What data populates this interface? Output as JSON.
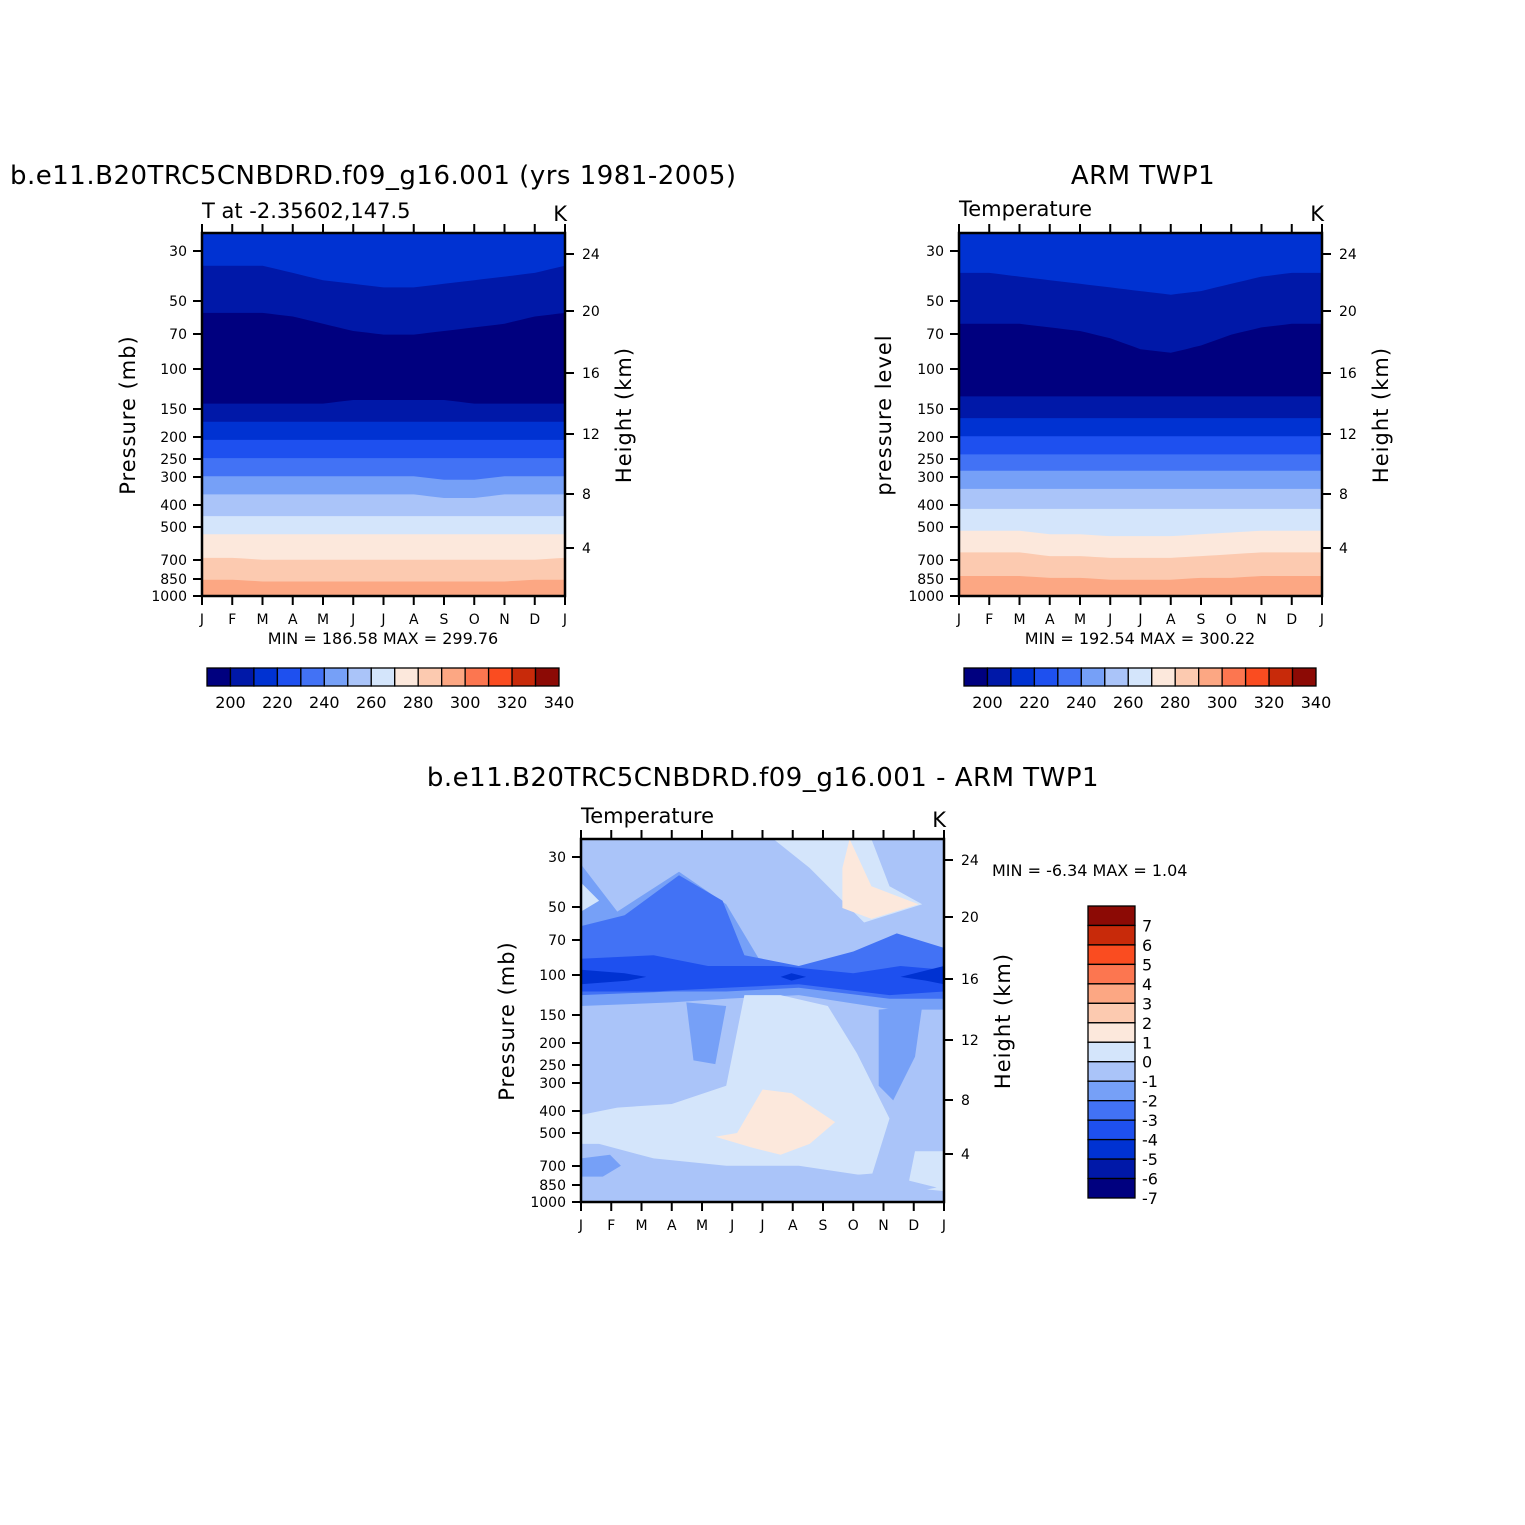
{
  "chart_data": [
    {
      "type": "heatmap",
      "title": "b.e11.B20TRC5CNBDRD.f09_g16.001 (yrs 1981-2005)",
      "subtitle_left": "T at -2.35602,147.5",
      "subtitle_right": "K",
      "ylabel": "Pressure (mb)",
      "ylabel_right": "Height (km)",
      "x_ticks": [
        "J",
        "F",
        "M",
        "A",
        "M",
        "J",
        "J",
        "A",
        "S",
        "O",
        "N",
        "D",
        "J"
      ],
      "y_ticks": [
        "30",
        "50",
        "70",
        "100",
        "150",
        "200",
        "250",
        "300",
        "400",
        "500",
        "700",
        "850",
        "1000"
      ],
      "y_ticks_right": [
        "24",
        "20",
        "16",
        "12",
        "8",
        "4"
      ],
      "stats": "MIN = 186.58 MAX = 299.76",
      "colorbar": {
        "orientation": "horizontal",
        "labels": [
          "200",
          "220",
          "240",
          "260",
          "280",
          "300",
          "320",
          "340"
        ]
      },
      "value_range": [
        186.58,
        299.76
      ]
    },
    {
      "type": "heatmap",
      "title": "ARM TWP1",
      "subtitle_left": "Temperature",
      "subtitle_right": "K",
      "ylabel": "pressure level",
      "ylabel_right": "Height (km)",
      "x_ticks": [
        "J",
        "F",
        "M",
        "A",
        "M",
        "J",
        "J",
        "A",
        "S",
        "O",
        "N",
        "D",
        "J"
      ],
      "y_ticks": [
        "30",
        "50",
        "70",
        "100",
        "150",
        "200",
        "250",
        "300",
        "400",
        "500",
        "700",
        "850",
        "1000"
      ],
      "y_ticks_right": [
        "24",
        "20",
        "16",
        "12",
        "8",
        "4"
      ],
      "stats": "MIN = 192.54 MAX = 300.22",
      "colorbar": {
        "orientation": "horizontal",
        "labels": [
          "200",
          "220",
          "240",
          "260",
          "280",
          "300",
          "320",
          "340"
        ]
      },
      "value_range": [
        192.54,
        300.22
      ]
    },
    {
      "type": "heatmap",
      "title": "b.e11.B20TRC5CNBDRD.f09_g16.001 - ARM TWP1",
      "subtitle_left": "Temperature",
      "subtitle_right": "K",
      "ylabel": "Pressure (mb)",
      "ylabel_right": "Height (km)",
      "x_ticks": [
        "J",
        "F",
        "M",
        "A",
        "M",
        "J",
        "J",
        "A",
        "S",
        "O",
        "N",
        "D",
        "J"
      ],
      "y_ticks": [
        "30",
        "50",
        "70",
        "100",
        "150",
        "200",
        "250",
        "300",
        "400",
        "500",
        "700",
        "850",
        "1000"
      ],
      "y_ticks_right": [
        "24",
        "20",
        "16",
        "12",
        "8",
        "4"
      ],
      "stats": "MIN =   -6.34 MAX =    1.04",
      "colorbar": {
        "orientation": "vertical",
        "labels": [
          "7",
          "6",
          "5",
          "4",
          "3",
          "2",
          "1",
          "0",
          "-1",
          "-2",
          "-3",
          "-4",
          "-5",
          "-6",
          "-7"
        ]
      },
      "value_range": [
        -6.34,
        1.04
      ]
    }
  ],
  "palette": [
    "#00007f",
    "#0018a8",
    "#0032d2",
    "#1e50ef",
    "#4272f5",
    "#76a0f7",
    "#aac4f9",
    "#d4e5fb",
    "#fce8dc",
    "#fccab0",
    "#fca783",
    "#fc7650",
    "#fa4c20",
    "#c82a0a",
    "#8c0a05"
  ],
  "palette_diff": [
    "#00007f",
    "#0018a8",
    "#0032d2",
    "#1e50ef",
    "#4272f5",
    "#76a0f7",
    "#aac4f9",
    "#d4e5fb",
    "#fce8dc",
    "#fccab0",
    "#fca783",
    "#fc7650",
    "#fa4c20",
    "#c82a0a",
    "#8c0a05"
  ]
}
